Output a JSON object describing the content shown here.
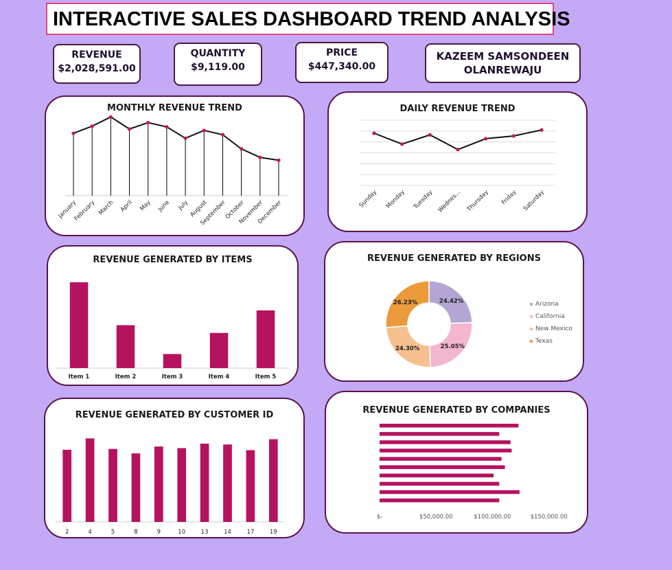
{
  "title": "INTERACTIVE SALES DASHBOARD TREND ANALYSIS",
  "kpis": {
    "revenue": {
      "label": "REVENUE",
      "value": "$2,028,591.00"
    },
    "quantity": {
      "label": "QUANTITY",
      "value": "$9,119.00"
    },
    "price": {
      "label": "PRICE",
      "value": "$447,340.00"
    },
    "author": {
      "line1": "KAZEEM SAMSONDEEN",
      "line2": "OLANREWAJU"
    }
  },
  "colors": {
    "background": "#c4a9f7",
    "bar": "#b5125f",
    "marker": "#c2185b",
    "arizona": "#b3a6d4",
    "california": "#f4b6cf",
    "new_mexico": "#f5c08e",
    "texas": "#eb9a3c"
  },
  "chart_data": [
    {
      "id": "monthly",
      "type": "line",
      "title": "MONTHLY REVENUE TREND",
      "categories": [
        "January",
        "February",
        "March",
        "April",
        "May",
        "June",
        "July",
        "August",
        "September",
        "October",
        "November",
        "December"
      ],
      "values": [
        188000,
        198000,
        211000,
        194000,
        203000,
        197000,
        181000,
        192000,
        186000,
        166000,
        154000,
        150000
      ],
      "ylim": [
        100000,
        220000
      ],
      "drop_lines": true,
      "grid": false
    },
    {
      "id": "daily",
      "type": "line",
      "title": "DAILY REVENUE TREND",
      "categories": [
        "Sunday",
        "Monday",
        "Tuesday",
        "Wednes...",
        "Thursday",
        "Friday",
        "Saturday"
      ],
      "values": [
        296000,
        276000,
        293000,
        266000,
        286000,
        291000,
        302000
      ],
      "ylim": [
        200000,
        320000
      ],
      "grid": true
    },
    {
      "id": "items",
      "type": "bar",
      "title": "REVENUE GENERATED BY ITEMS",
      "categories": [
        "Item 1",
        "Item 2",
        "Item 3",
        "Item 4",
        "Item 5"
      ],
      "values": [
        610000,
        305000,
        100000,
        250000,
        410000
      ],
      "ylim": [
        0,
        620000
      ]
    },
    {
      "id": "regions",
      "type": "pie",
      "title": "REVENUE GENERATED BY REGIONS",
      "labels": [
        "Arizona",
        "California",
        "New Mexico",
        "Texas"
      ],
      "values": [
        24.42,
        25.05,
        24.3,
        26.23
      ],
      "value_labels": [
        "24.42%",
        "25.05%",
        "24.30%",
        "26.23%"
      ],
      "legend": "right"
    },
    {
      "id": "customers",
      "type": "bar",
      "title": "REVENUE GENERATED BY CUSTOMER ID",
      "categories": [
        "2",
        "4",
        "5",
        "8",
        "9",
        "10",
        "13",
        "14",
        "17",
        "19"
      ],
      "values": [
        178000,
        206000,
        180000,
        169000,
        186000,
        182000,
        193000,
        191000,
        177000,
        204000
      ],
      "ylim": [
        0,
        210000
      ]
    },
    {
      "id": "companies",
      "type": "bar",
      "orientation": "horizontal",
      "title": "REVENUE GENERATED BY COMPANIES",
      "values": [
        123000,
        106000,
        116000,
        117000,
        108000,
        111000,
        101000,
        106000,
        124000,
        106000
      ],
      "xlim": [
        0,
        180000
      ],
      "x_ticks": [
        {
          "value": 0,
          "label": "$-"
        },
        {
          "value": 50000,
          "label": "$50,000.00"
        },
        {
          "value": 100000,
          "label": "$100,000.00"
        },
        {
          "value": 150000,
          "label": "$150,000.00"
        }
      ]
    }
  ]
}
